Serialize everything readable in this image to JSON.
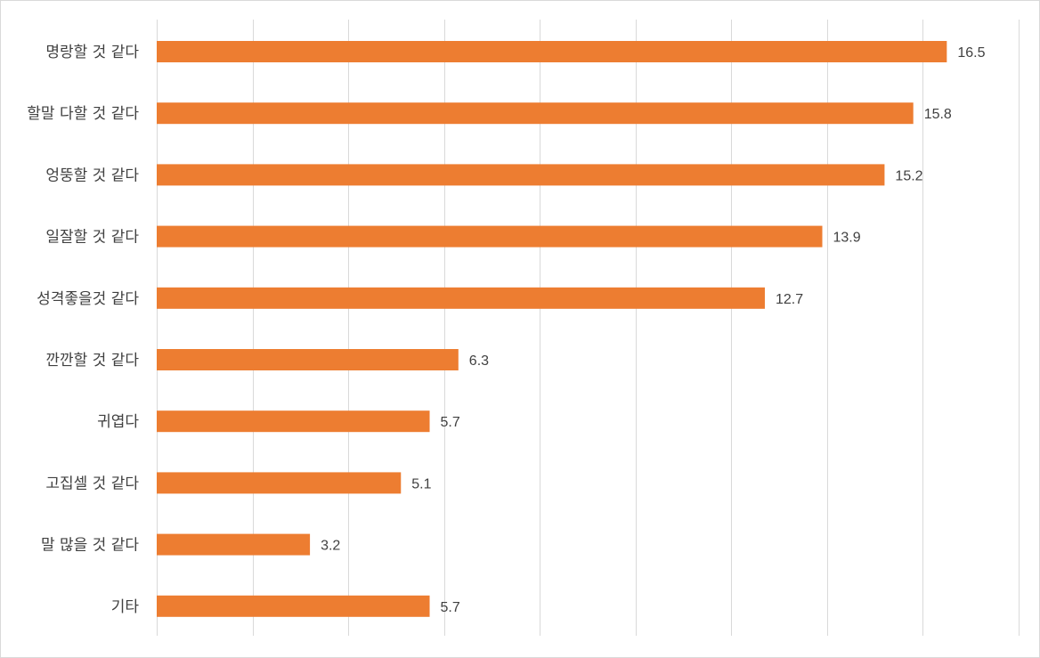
{
  "chart_data": {
    "type": "bar",
    "orientation": "horizontal",
    "title": "",
    "xlabel": "",
    "ylabel": "",
    "xlim": [
      0,
      18
    ],
    "grid": true,
    "legend": "none",
    "bar_color": "#ED7D31",
    "grid_color": "#D9D9D9",
    "categories": [
      "명랑할 것 같다",
      "할말 다할 것 같다",
      "엉뚱할 것 같다",
      "일잘할 것 같다",
      "성격좋을것 같다",
      "깐깐할 것 같다",
      "귀엽다",
      "고집셀 것 같다",
      "말 많을 것 같다",
      "기타"
    ],
    "values": [
      16.5,
      15.8,
      15.2,
      13.9,
      12.7,
      6.3,
      5.7,
      5.1,
      3.2,
      5.7
    ],
    "value_labels": [
      "16.5",
      "15.8",
      "15.2",
      "13.9",
      "12.7",
      "6.3",
      "5.7",
      "5.1",
      "3.2",
      "5.7"
    ]
  }
}
